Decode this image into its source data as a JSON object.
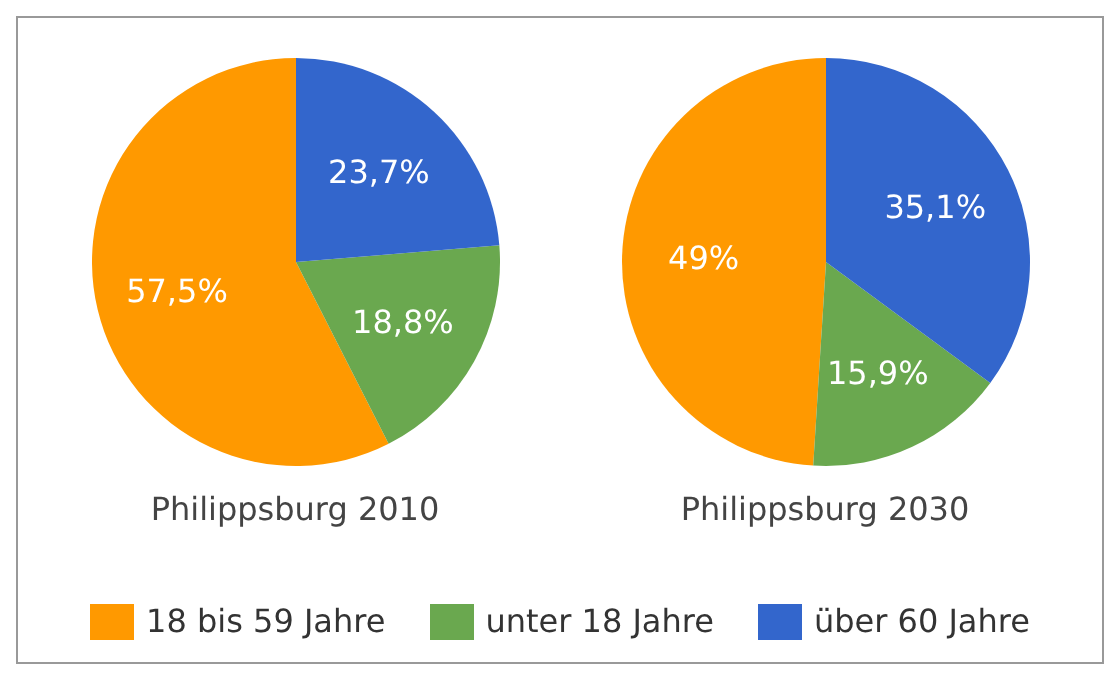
{
  "chart_data": {
    "type": "pie",
    "categories": [
      "18 bis 59 Jahre",
      "unter 18 Jahre",
      "über 60 Jahre"
    ],
    "colors": [
      "#ff9900",
      "#6aa84f",
      "#3366cc"
    ],
    "legend": "bottom",
    "series": [
      {
        "name": "Philippsburg 2010",
        "values": [
          57.5,
          18.8,
          23.7
        ],
        "value_labels": [
          "57,5%",
          "18,8%",
          "23,7%"
        ]
      },
      {
        "name": "Philippsburg 2030",
        "values": [
          49,
          15.9,
          35.1
        ],
        "value_labels": [
          "49%",
          "15,9%",
          "35,1%"
        ]
      }
    ]
  }
}
